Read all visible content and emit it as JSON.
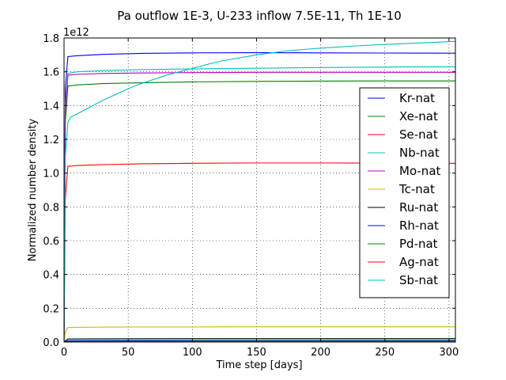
{
  "chart_data": {
    "type": "line",
    "title": "Pa outflow 1E-3, U-233 inflow 7.5E-11, Th 1E-10",
    "xlabel": "Time step [days]",
    "ylabel": "Normalized number density",
    "y_offset_label": "1e12",
    "xlim": [
      0,
      305
    ],
    "ylim": [
      0,
      1.8
    ],
    "y_unit_multiplier": 1000000000000.0,
    "xticks": [
      0,
      50,
      100,
      150,
      200,
      250,
      300
    ],
    "yticks": [
      0.0,
      0.2,
      0.4,
      0.6,
      0.8,
      1.0,
      1.2,
      1.4,
      1.6,
      1.8
    ],
    "xtick_labels": [
      "0",
      "50",
      "100",
      "150",
      "200",
      "250",
      "300"
    ],
    "ytick_labels": [
      "0.0",
      "0.2",
      "0.4",
      "0.6",
      "0.8",
      "1.0",
      "1.2",
      "1.4",
      "1.6",
      "1.8"
    ],
    "grid": true,
    "legend_position": "right",
    "series": [
      {
        "name": "Kr-nat",
        "color": "#0000ff",
        "x": [
          0,
          1,
          3,
          10,
          30,
          60,
          100,
          150,
          200,
          250,
          305
        ],
        "y": [
          0,
          1.5,
          1.69,
          1.695,
          1.703,
          1.709,
          1.712,
          1.713,
          1.712,
          1.711,
          1.71
        ]
      },
      {
        "name": "Xe-nat",
        "color": "#008000",
        "x": [
          0,
          1,
          3,
          10,
          30,
          60,
          100,
          150,
          200,
          250,
          305
        ],
        "y": [
          0,
          1.3,
          1.515,
          1.522,
          1.53,
          1.535,
          1.54,
          1.543,
          1.545,
          1.546,
          1.546
        ]
      },
      {
        "name": "Se-nat",
        "color": "#ff0000",
        "x": [
          0,
          1,
          3,
          10,
          30,
          60,
          100,
          150,
          200,
          250,
          305
        ],
        "y": [
          0,
          0.85,
          1.04,
          1.045,
          1.05,
          1.055,
          1.058,
          1.06,
          1.06,
          1.059,
          1.058
        ]
      },
      {
        "name": "Nb-nat",
        "color": "#00bfbf",
        "x": [
          0,
          1,
          3,
          10,
          30,
          60,
          100,
          150,
          200,
          250,
          305
        ],
        "y": [
          0,
          1.4,
          1.59,
          1.6,
          1.607,
          1.613,
          1.617,
          1.621,
          1.625,
          1.628,
          1.63
        ]
      },
      {
        "name": "Mo-nat",
        "color": "#bf00bf",
        "x": [
          0,
          1,
          3,
          10,
          30,
          60,
          100,
          150,
          200,
          250,
          305
        ],
        "y": [
          0,
          1.35,
          1.58,
          1.585,
          1.59,
          1.593,
          1.595,
          1.597,
          1.597,
          1.597,
          1.597
        ]
      },
      {
        "name": "Tc-nat",
        "color": "#bfbf00",
        "x": [
          0,
          1,
          3,
          10,
          30,
          60,
          100,
          150,
          200,
          250,
          305
        ],
        "y": [
          0,
          0.06,
          0.086,
          0.087,
          0.088,
          0.089,
          0.089,
          0.09,
          0.09,
          0.09,
          0.09
        ]
      },
      {
        "name": "Ru-nat",
        "color": "#000000",
        "x": [
          0,
          3,
          30,
          100,
          200,
          305
        ],
        "y": [
          0,
          0.018,
          0.019,
          0.02,
          0.02,
          0.02
        ]
      },
      {
        "name": "Rh-nat",
        "color": "#0000ff",
        "x": [
          0,
          3,
          30,
          100,
          200,
          305
        ],
        "y": [
          0,
          0.008,
          0.009,
          0.01,
          0.01,
          0.01
        ]
      },
      {
        "name": "Pd-nat",
        "color": "#008000",
        "x": [
          0,
          3,
          30,
          100,
          200,
          305
        ],
        "y": [
          0,
          0.004,
          0.005,
          0.005,
          0.005,
          0.005
        ]
      },
      {
        "name": "Ag-nat",
        "color": "#ff0000",
        "x": [
          0,
          3,
          30,
          100,
          200,
          305
        ],
        "y": [
          0,
          0.001,
          0.001,
          0.001,
          0.001,
          0.001
        ]
      },
      {
        "name": "Sb-nat",
        "color": "#00bfbf",
        "x": [
          0,
          1,
          3,
          5,
          10,
          20,
          30,
          40,
          50,
          60,
          80,
          100,
          120,
          150,
          175,
          200,
          225,
          250,
          275,
          305
        ],
        "y": [
          0,
          1.1,
          1.3,
          1.33,
          1.35,
          1.39,
          1.43,
          1.465,
          1.5,
          1.53,
          1.58,
          1.62,
          1.66,
          1.7,
          1.725,
          1.74,
          1.752,
          1.762,
          1.77,
          1.78
        ]
      }
    ]
  }
}
